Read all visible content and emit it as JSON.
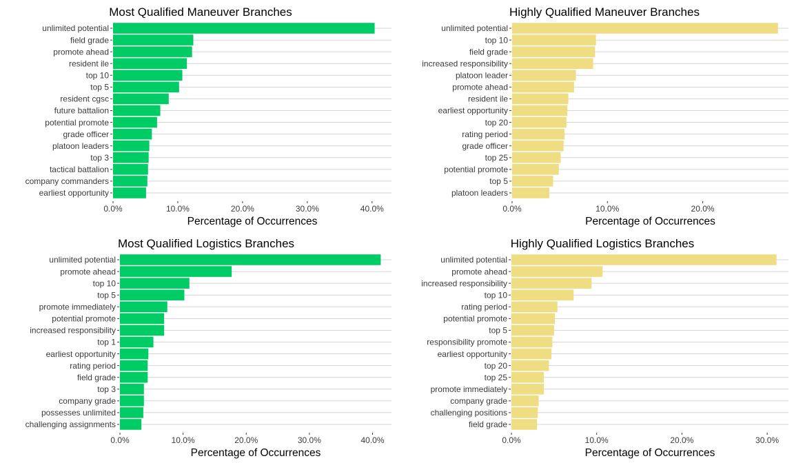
{
  "chart_data": [
    {
      "type": "bar",
      "orientation": "horizontal",
      "title": "Most Qualified Maneuver Branches",
      "xlabel": "Percentage of Occurrences",
      "ylabel": "",
      "xlim": [
        0,
        43
      ],
      "xticks": [
        0,
        10,
        20,
        30,
        40
      ],
      "xtick_labels": [
        "0.0%",
        "10.0%",
        "20.0%",
        "30.0%",
        "40.0%"
      ],
      "color": "#00cc66",
      "categories": [
        "unlimited potential",
        "field grade",
        "promote ahead",
        "resident ile",
        "top 10",
        "top 5",
        "resident cgsc",
        "future battalion",
        "potential promote",
        "grade officer",
        "platoon leaders",
        "top 3",
        "tactical battalion",
        "company commanders",
        "earliest opportunity"
      ],
      "values": [
        40.4,
        12.4,
        12.2,
        11.4,
        10.7,
        10.2,
        8.6,
        7.3,
        6.8,
        6.0,
        5.6,
        5.5,
        5.4,
        5.3,
        5.1
      ]
    },
    {
      "type": "bar",
      "orientation": "horizontal",
      "title": "Highly Qualified Maneuver Branches",
      "xlabel": "Percentage of Occurrences",
      "ylabel": "",
      "xlim": [
        0,
        29
      ],
      "xticks": [
        0,
        10,
        20
      ],
      "xtick_labels": [
        "0.0%",
        "10.0%",
        "20.0%"
      ],
      "color": "#eedd82",
      "categories": [
        "unlimited potential",
        "top 10",
        "field grade",
        "increased responsibility",
        "platoon leader",
        "promote ahead",
        "resident ile",
        "earliest opportunity",
        "top 20",
        "rating period",
        "grade officer",
        "top 25",
        "potential promote",
        "top 5",
        "platoon leaders"
      ],
      "values": [
        27.9,
        8.8,
        8.7,
        8.5,
        6.7,
        6.5,
        5.9,
        5.8,
        5.7,
        5.5,
        5.4,
        5.1,
        4.9,
        4.3,
        3.9
      ]
    },
    {
      "type": "bar",
      "orientation": "horizontal",
      "title": "Most Qualified Logistics Branches",
      "xlabel": "Percentage of Occurrences",
      "ylabel": "",
      "xlim": [
        0,
        43
      ],
      "xticks": [
        0,
        10,
        20,
        30,
        40
      ],
      "xtick_labels": [
        "0.0%",
        "10.0%",
        "20.0%",
        "30.0%",
        "40.0%"
      ],
      "color": "#00cc66",
      "categories": [
        "unlimited potential",
        "promote ahead",
        "top 10",
        "top 5",
        "promote immediately",
        "potential promote",
        "increased responsibility",
        "top 1",
        "earliest opportunity",
        "rating period",
        "field grade",
        "top 3",
        "company grade",
        "possesses unlimited",
        "challenging assignments"
      ],
      "values": [
        41.3,
        17.7,
        11.0,
        10.2,
        7.5,
        7.0,
        7.0,
        5.3,
        4.5,
        4.4,
        4.4,
        3.8,
        3.8,
        3.7,
        3.4
      ]
    },
    {
      "type": "bar",
      "orientation": "horizontal",
      "title": "Highly Qualified Logistics Branches",
      "xlabel": "Percentage of Occurrences",
      "ylabel": "",
      "xlim": [
        0,
        32.5
      ],
      "xticks": [
        0,
        10,
        20,
        30
      ],
      "xtick_labels": [
        "0.0%",
        "10.0%",
        "20.0%",
        "30.0%"
      ],
      "color": "#eedd82",
      "categories": [
        "unlimited potential",
        "promote ahead",
        "increased responsibility",
        "top 10",
        "rating period",
        "potential promote",
        "top 5",
        "responsibility promote",
        "earliest opportunity",
        "top 20",
        "top 25",
        "promote immediately",
        "company grade",
        "challenging positions",
        "field grade"
      ],
      "values": [
        31.1,
        10.7,
        9.4,
        7.3,
        5.4,
        5.1,
        5.0,
        4.8,
        4.7,
        4.4,
        3.8,
        3.8,
        3.2,
        3.1,
        3.0
      ]
    }
  ]
}
